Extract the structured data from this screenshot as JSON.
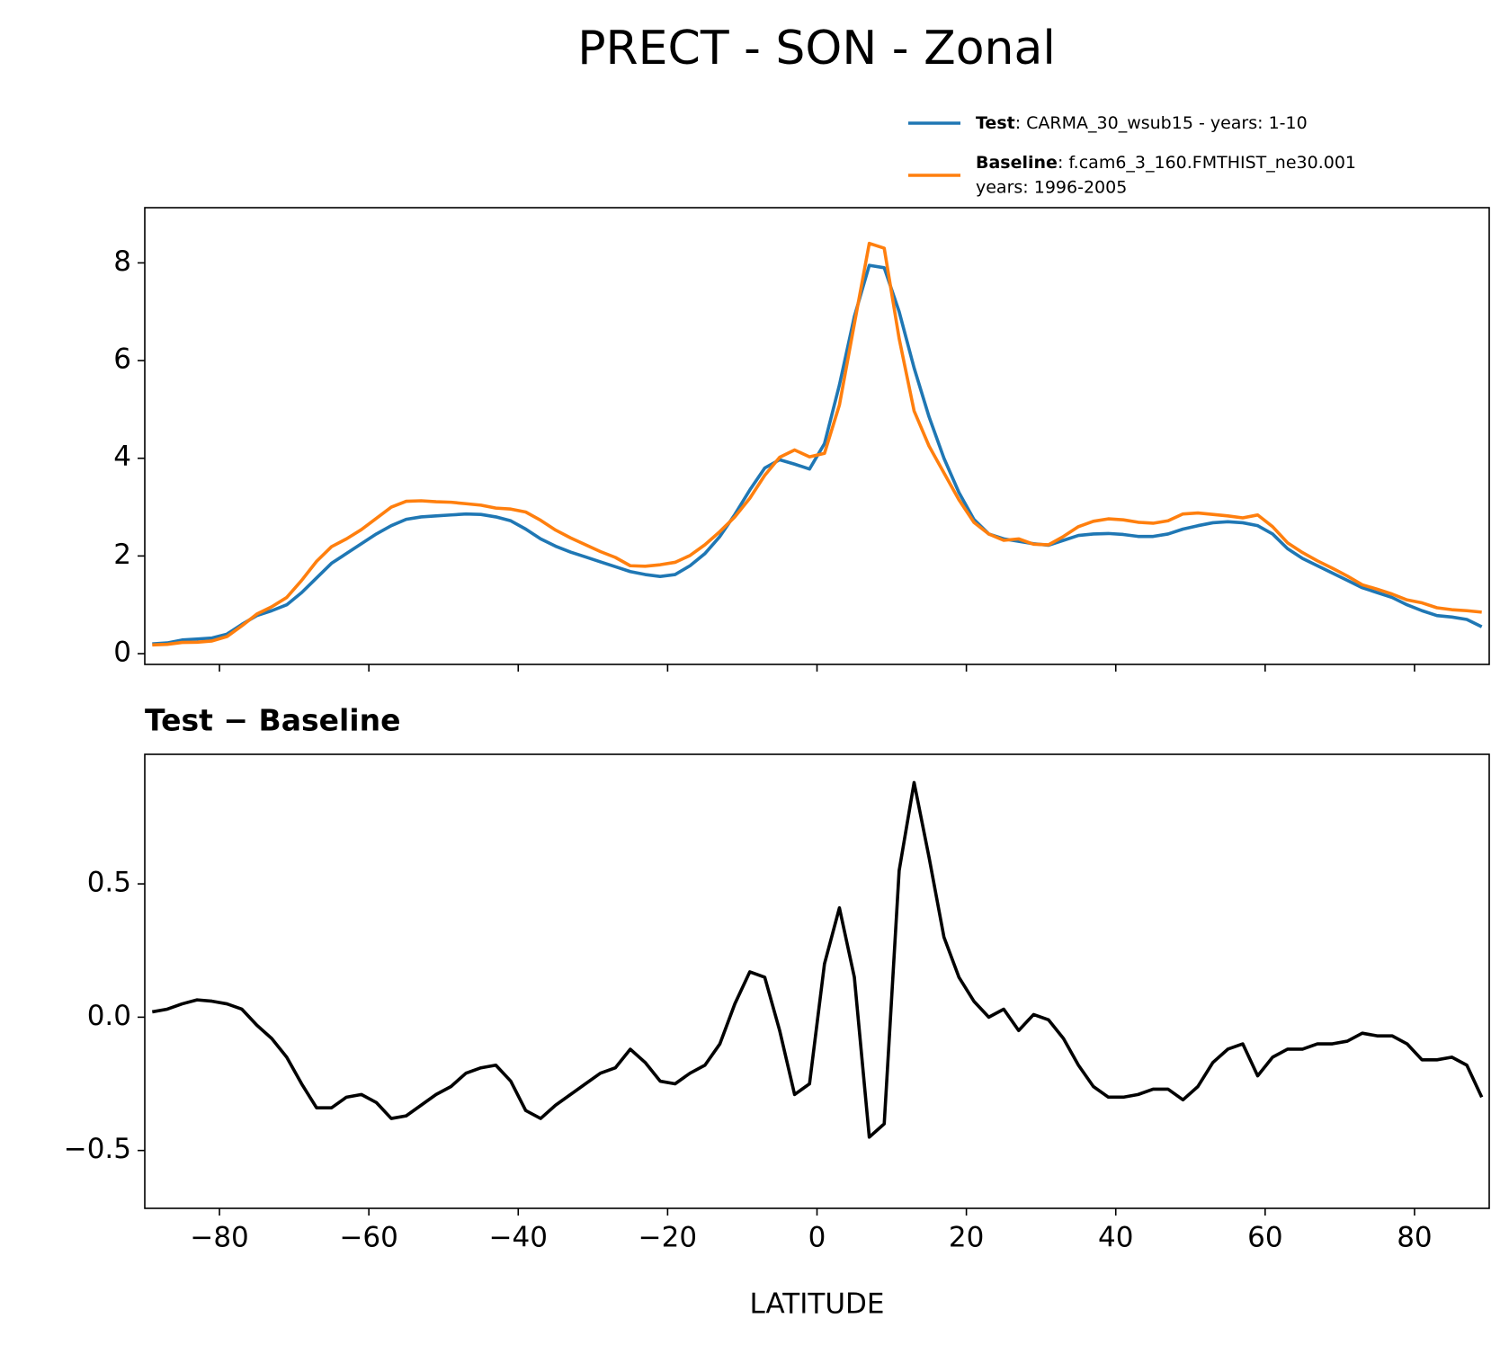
{
  "title": "PRECT - SON - Zonal",
  "chart_data": [
    {
      "type": "line",
      "x": [
        -89,
        -87,
        -85,
        -83,
        -81,
        -79,
        -77,
        -75,
        -73,
        -71,
        -69,
        -67,
        -65,
        -63,
        -61,
        -59,
        -57,
        -55,
        -53,
        -51,
        -49,
        -47,
        -45,
        -43,
        -41,
        -39,
        -37,
        -35,
        -33,
        -31,
        -29,
        -27,
        -25,
        -23,
        -21,
        -19,
        -17,
        -15,
        -13,
        -11,
        -9,
        -7,
        -5,
        -3,
        -1,
        1,
        3,
        5,
        7,
        9,
        11,
        13,
        15,
        17,
        19,
        21,
        23,
        25,
        27,
        29,
        31,
        33,
        35,
        37,
        39,
        41,
        43,
        45,
        47,
        49,
        51,
        53,
        55,
        57,
        59,
        61,
        63,
        65,
        67,
        69,
        71,
        73,
        75,
        77,
        79,
        81,
        83,
        85,
        87,
        89
      ],
      "series": [
        {
          "name": "Test",
          "description": [
            ": CARMA_30_wsub15 - years: 1-10"
          ],
          "color": "#1f77b4",
          "values": [
            0.2,
            0.22,
            0.28,
            0.3,
            0.32,
            0.4,
            0.6,
            0.78,
            0.88,
            1.0,
            1.25,
            1.55,
            1.85,
            2.05,
            2.25,
            2.45,
            2.62,
            2.75,
            2.8,
            2.82,
            2.84,
            2.86,
            2.85,
            2.8,
            2.72,
            2.55,
            2.35,
            2.2,
            2.08,
            1.98,
            1.88,
            1.78,
            1.68,
            1.62,
            1.58,
            1.62,
            1.8,
            2.05,
            2.4,
            2.85,
            3.35,
            3.8,
            3.97,
            3.88,
            3.78,
            4.3,
            5.5,
            6.9,
            7.95,
            7.9,
            7.0,
            5.85,
            4.85,
            4.0,
            3.3,
            2.75,
            2.45,
            2.35,
            2.3,
            2.25,
            2.22,
            2.32,
            2.42,
            2.45,
            2.46,
            2.44,
            2.4,
            2.4,
            2.45,
            2.55,
            2.62,
            2.68,
            2.7,
            2.68,
            2.62,
            2.45,
            2.15,
            1.95,
            1.8,
            1.65,
            1.5,
            1.35,
            1.25,
            1.15,
            1.0,
            0.88,
            0.78,
            0.75,
            0.7,
            0.55
          ]
        },
        {
          "name": "Baseline",
          "description": [
            ": f.cam6_3_160.FMTHIST_ne30.001",
            "years: 1996-2005"
          ],
          "color": "#ff7f0e",
          "values": [
            0.18,
            0.19,
            0.23,
            0.235,
            0.26,
            0.35,
            0.57,
            0.81,
            0.96,
            1.15,
            1.5,
            1.89,
            2.19,
            2.35,
            2.54,
            2.77,
            3.0,
            3.12,
            3.13,
            3.11,
            3.1,
            3.07,
            3.04,
            2.98,
            2.96,
            2.9,
            2.73,
            2.53,
            2.37,
            2.23,
            2.09,
            1.97,
            1.8,
            1.79,
            1.82,
            1.87,
            2.01,
            2.23,
            2.5,
            2.8,
            3.18,
            3.65,
            4.02,
            4.17,
            4.03,
            4.1,
            5.09,
            6.75,
            8.4,
            8.3,
            6.45,
            4.97,
            4.25,
            3.7,
            3.15,
            2.69,
            2.45,
            2.32,
            2.35,
            2.24,
            2.23,
            2.4,
            2.6,
            2.71,
            2.76,
            2.74,
            2.69,
            2.67,
            2.72,
            2.86,
            2.88,
            2.85,
            2.82,
            2.78,
            2.84,
            2.6,
            2.27,
            2.07,
            1.9,
            1.75,
            1.59,
            1.41,
            1.32,
            1.22,
            1.1,
            1.04,
            0.94,
            0.9,
            0.88,
            0.85
          ]
        }
      ],
      "xlim": [
        -90,
        90
      ],
      "xticks": [
        -80,
        -60,
        -40,
        -20,
        0,
        20,
        40,
        60,
        80
      ],
      "ylim": [
        -0.22,
        9.13
      ],
      "yticks": [
        0,
        2,
        4,
        6,
        8
      ],
      "legend": "upper right"
    },
    {
      "type": "line",
      "title": "Test − Baseline",
      "xlabel": "LATITUDE",
      "x": [
        -89,
        -87,
        -85,
        -83,
        -81,
        -79,
        -77,
        -75,
        -73,
        -71,
        -69,
        -67,
        -65,
        -63,
        -61,
        -59,
        -57,
        -55,
        -53,
        -51,
        -49,
        -47,
        -45,
        -43,
        -41,
        -39,
        -37,
        -35,
        -33,
        -31,
        -29,
        -27,
        -25,
        -23,
        -21,
        -19,
        -17,
        -15,
        -13,
        -11,
        -9,
        -7,
        -5,
        -3,
        -1,
        1,
        3,
        5,
        7,
        9,
        11,
        13,
        15,
        17,
        19,
        21,
        23,
        25,
        27,
        29,
        31,
        33,
        35,
        37,
        39,
        41,
        43,
        45,
        47,
        49,
        51,
        53,
        55,
        57,
        59,
        61,
        63,
        65,
        67,
        69,
        71,
        73,
        75,
        77,
        79,
        81,
        83,
        85,
        87,
        89
      ],
      "series": [
        {
          "color": "#000000",
          "values": [
            0.02,
            0.03,
            0.05,
            0.065,
            0.06,
            0.05,
            0.03,
            -0.03,
            -0.08,
            -0.15,
            -0.25,
            -0.34,
            -0.34,
            -0.3,
            -0.29,
            -0.32,
            -0.38,
            -0.37,
            -0.33,
            -0.29,
            -0.26,
            -0.21,
            -0.19,
            -0.18,
            -0.24,
            -0.35,
            -0.38,
            -0.33,
            -0.29,
            -0.25,
            -0.21,
            -0.19,
            -0.12,
            -0.17,
            -0.24,
            -0.25,
            -0.21,
            -0.18,
            -0.1,
            0.05,
            0.17,
            0.15,
            -0.05,
            -0.29,
            -0.25,
            0.2,
            0.41,
            0.15,
            -0.45,
            -0.4,
            0.55,
            0.88,
            0.6,
            0.3,
            0.15,
            0.06,
            0.0,
            0.03,
            -0.05,
            0.01,
            -0.01,
            -0.08,
            -0.18,
            -0.26,
            -0.3,
            -0.3,
            -0.29,
            -0.27,
            -0.27,
            -0.31,
            -0.26,
            -0.17,
            -0.12,
            -0.1,
            -0.22,
            -0.15,
            -0.12,
            -0.12,
            -0.1,
            -0.1,
            -0.09,
            -0.06,
            -0.07,
            -0.07,
            -0.1,
            -0.16,
            -0.16,
            -0.15,
            -0.18,
            -0.3
          ]
        }
      ],
      "xlim": [
        -90,
        90
      ],
      "xticks": [
        {
          "value": -80,
          "label": "−80"
        },
        {
          "value": -60,
          "label": "−60"
        },
        {
          "value": -40,
          "label": "−40"
        },
        {
          "value": -20,
          "label": "−20"
        },
        0,
        20,
        40,
        60,
        80
      ],
      "ylim": [
        -0.717,
        0.986
      ],
      "yticks": [
        {
          "value": -0.5,
          "label": "−0.5"
        },
        {
          "value": 0,
          "label": "0.0"
        },
        0.5
      ]
    }
  ]
}
